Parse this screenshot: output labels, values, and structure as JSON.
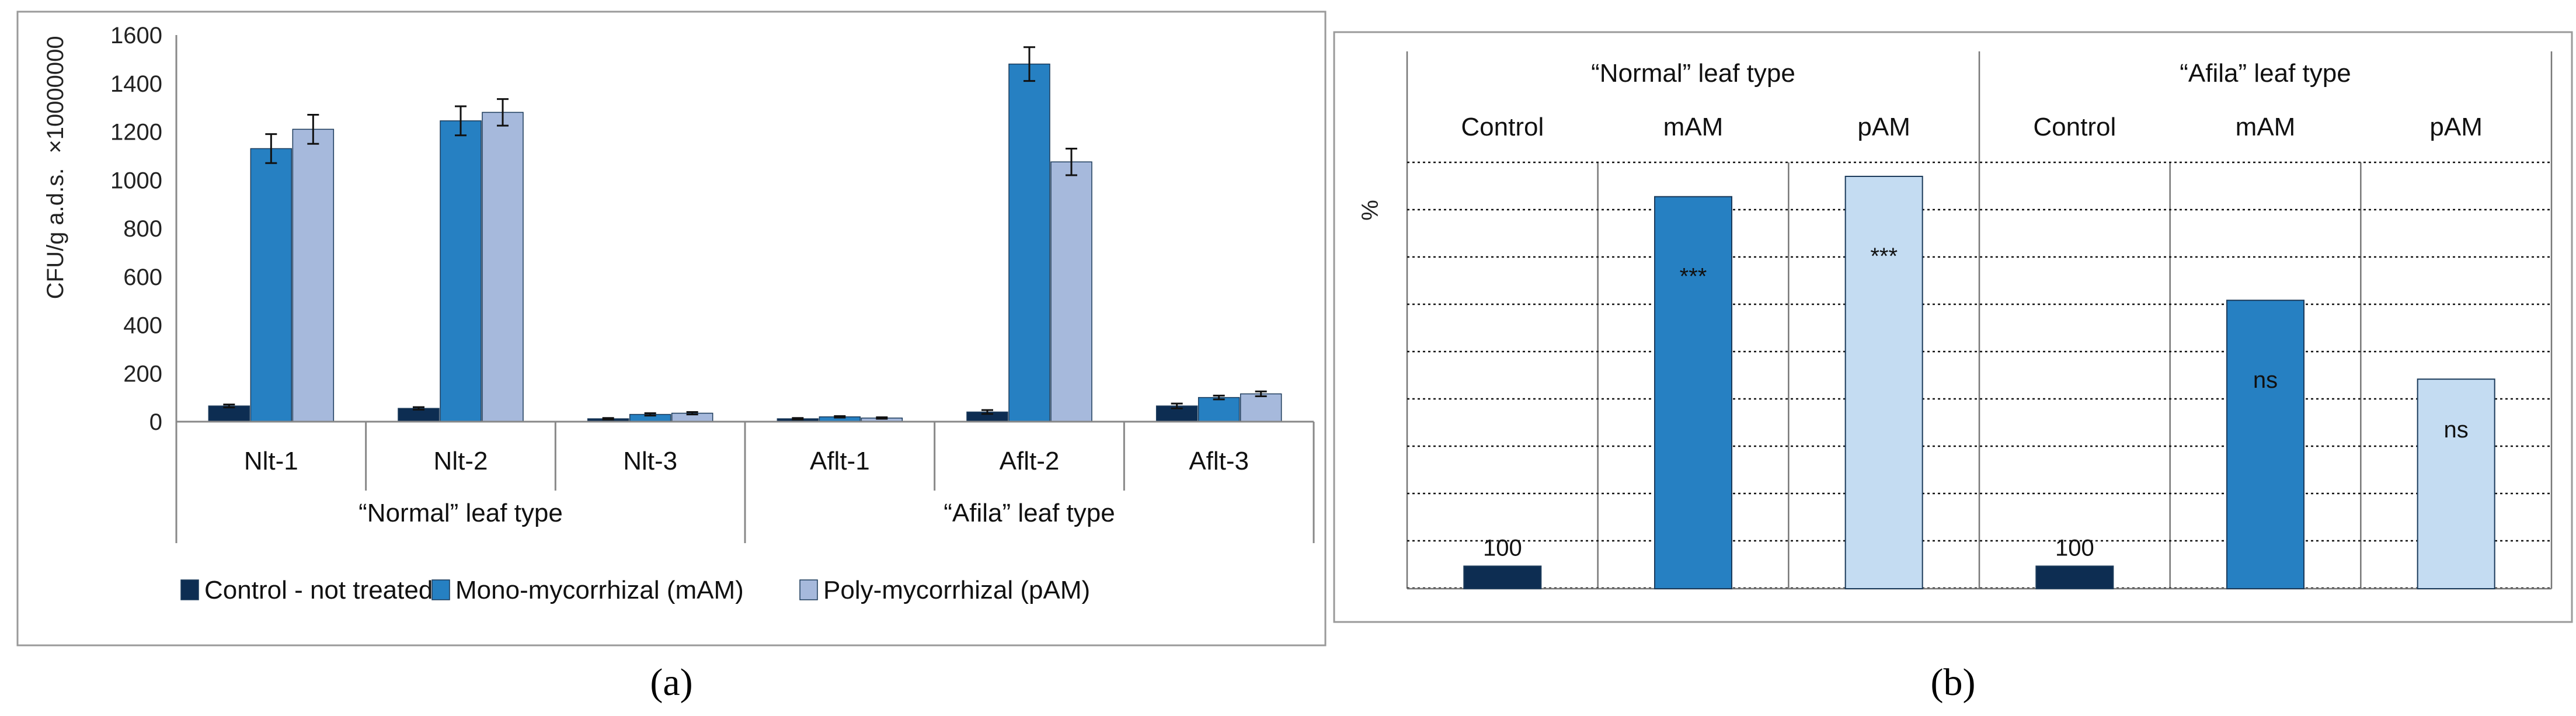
{
  "colors": {
    "control": "#0d2d52",
    "mam": "#2680c2",
    "pam_a": "#a6b9dc",
    "pam_b": "#c4dcf2"
  },
  "panel_labels": [
    "(a)",
    "(b)"
  ],
  "chart_data": [
    {
      "type": "bar",
      "ylabel": "CFU/g a.d.s.",
      "multiplier": "×10000000",
      "ylim": [
        0,
        1600
      ],
      "yticks": [
        0,
        200,
        400,
        600,
        800,
        1000,
        1200,
        1400,
        1600
      ],
      "categories": [
        "Nlt-1",
        "Nlt-2",
        "Nlt-3",
        "Aflt-1",
        "Aflt-2",
        "Aflt-3"
      ],
      "groups": [
        {
          "label": "“Normal” leaf type",
          "categories": [
            "Nlt-1",
            "Nlt-2",
            "Nlt-3"
          ]
        },
        {
          "label": "“Afila” leaf type",
          "categories": [
            "Aflt-1",
            "Aflt-2",
            "Aflt-3"
          ]
        }
      ],
      "series": [
        {
          "name": "Control - not treated",
          "values": [
            65,
            55,
            12,
            12,
            40,
            65
          ],
          "errors": [
            6,
            5,
            3,
            3,
            8,
            10
          ]
        },
        {
          "name": "Mono-mycorrhizal (mAM)",
          "values": [
            1130,
            1245,
            30,
            20,
            1480,
            100
          ],
          "errors": [
            60,
            60,
            5,
            3,
            70,
            8
          ]
        },
        {
          "name": "Poly-mycorrhizal (pAM)",
          "values": [
            1210,
            1280,
            35,
            15,
            1075,
            115
          ],
          "errors": [
            60,
            55,
            5,
            3,
            55,
            10
          ]
        }
      ],
      "legend": "bottom"
    },
    {
      "type": "bar",
      "ylabel": "%",
      "groups": [
        {
          "label": "“Normal” leaf type",
          "categories": [
            "Control",
            "mAM",
            "pAM"
          ]
        },
        {
          "label": "“Afila” leaf type",
          "categories": [
            "Control",
            "mAM",
            "pAM"
          ]
        }
      ],
      "bars": [
        {
          "group": "“Normal” leaf type",
          "category": "Control",
          "value": 100,
          "label": "100"
        },
        {
          "group": "“Normal” leaf type",
          "category": "mAM",
          "value": 1740,
          "label": "***"
        },
        {
          "group": "“Normal” leaf type",
          "category": "pAM",
          "value": 1830,
          "label": "***"
        },
        {
          "group": "“Afila” leaf type",
          "category": "Control",
          "value": 100,
          "label": "100"
        },
        {
          "group": "“Afila” leaf type",
          "category": "mAM",
          "value": 1280,
          "label": "ns"
        },
        {
          "group": "“Afila” leaf type",
          "category": "pAM",
          "value": 930,
          "label": "ns"
        }
      ],
      "grid": true
    }
  ]
}
